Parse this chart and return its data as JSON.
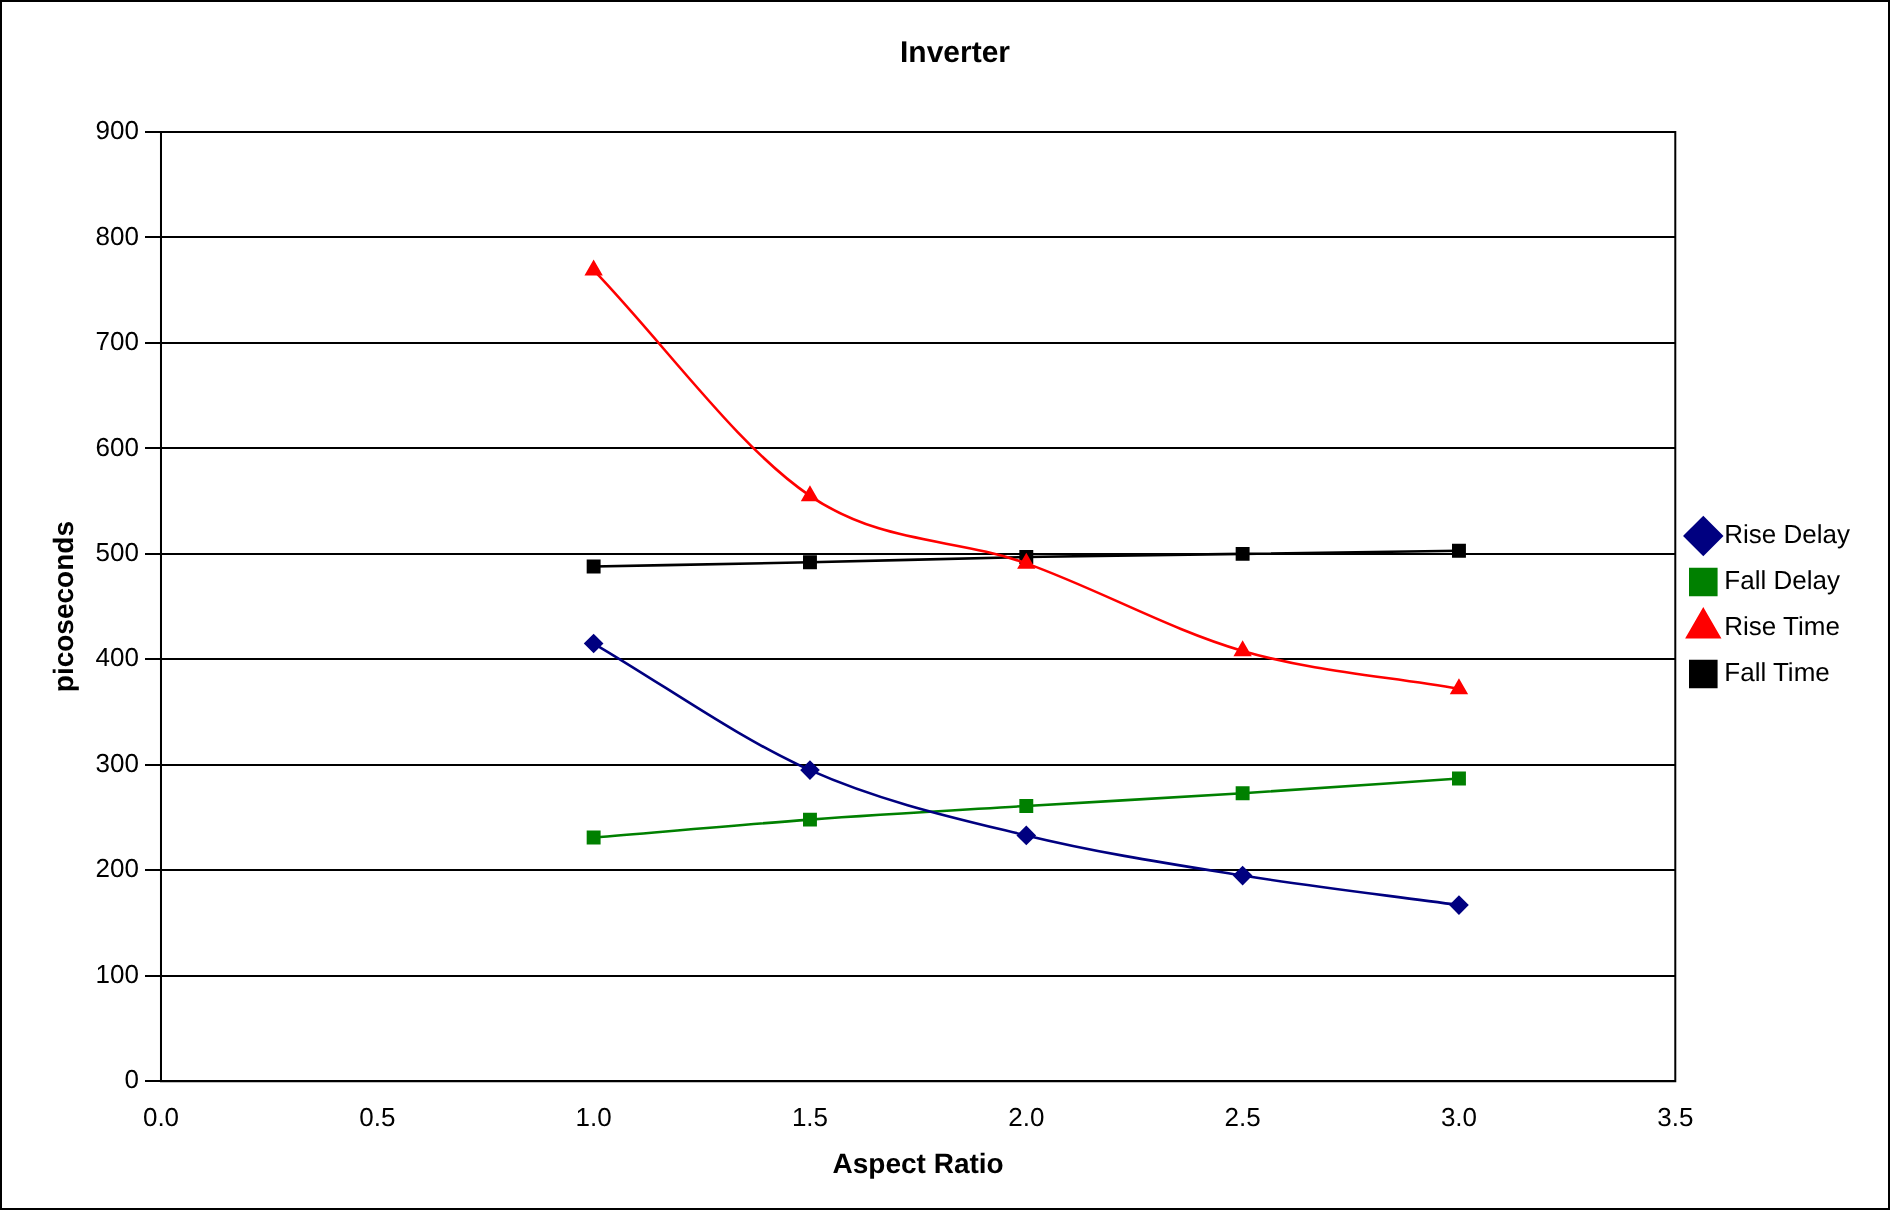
{
  "chart_data": {
    "type": "line",
    "title": "Inverter",
    "xlabel": "Aspect Ratio",
    "ylabel": "picoseconds",
    "x": [
      1.0,
      1.5,
      2.0,
      2.5,
      3.0
    ],
    "xlim": [
      0,
      3.5
    ],
    "xticks": [
      {
        "value": 0,
        "label": "0.0"
      },
      {
        "value": 0.5,
        "label": "0.5"
      },
      {
        "value": 1,
        "label": "1.0"
      },
      {
        "value": 1.5,
        "label": "1.5"
      },
      {
        "value": 2,
        "label": "2.0"
      },
      {
        "value": 2.5,
        "label": "2.5"
      },
      {
        "value": 3,
        "label": "3.0"
      },
      {
        "value": 3.5,
        "label": "3.5"
      }
    ],
    "ylim": [
      0,
      900
    ],
    "yticks": [
      0,
      100,
      200,
      300,
      400,
      500,
      600,
      700,
      800,
      900
    ],
    "grid": "y",
    "legend": "right",
    "series": [
      {
        "name": "Rise Delay",
        "color": "#000080",
        "marker": "diamond",
        "values": [
          415,
          295,
          233,
          195,
          167
        ]
      },
      {
        "name": "Fall Delay",
        "color": "#008000",
        "marker": "square",
        "values": [
          231,
          248,
          261,
          273,
          287
        ]
      },
      {
        "name": "Rise Time",
        "color": "#ff0000",
        "marker": "triangle",
        "values": [
          769,
          555,
          491,
          408,
          372
        ]
      },
      {
        "name": "Fall Time",
        "color": "#000000",
        "marker": "square",
        "values": [
          488,
          492,
          497,
          500,
          503
        ]
      }
    ]
  }
}
